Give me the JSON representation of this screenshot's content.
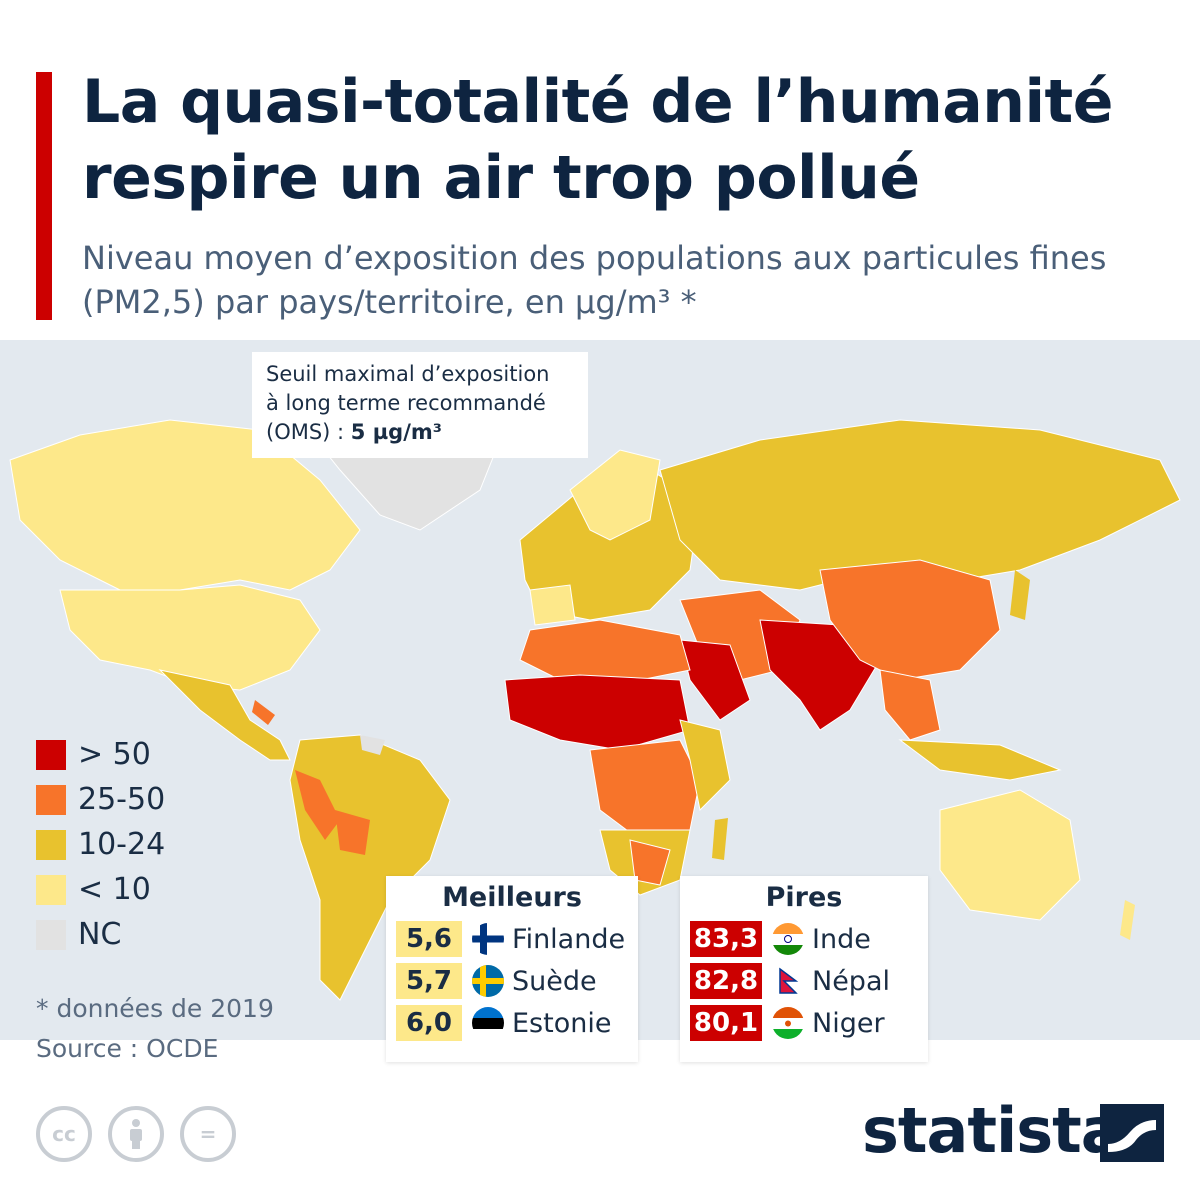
{
  "header": {
    "title": "La quasi-totalité de l’humanité respire un air trop pollué",
    "subtitle": "Niveau moyen d’exposition des populations aux particules fines (PM2,5) par pays/territoire, en µg/m³ *"
  },
  "annotation": {
    "line1": "Seuil maximal d’exposition",
    "line2": "à long terme recommandé",
    "line3_prefix": "(OMS) : ",
    "line3_value": "5 µg/m³"
  },
  "legend": {
    "items": [
      {
        "label": "> 50",
        "color": "#cc0000"
      },
      {
        "label": "25-50",
        "color": "#f7742a"
      },
      {
        "label": "10-24",
        "color": "#e8c22e"
      },
      {
        "label": "< 10",
        "color": "#fde88a"
      },
      {
        "label": "NC",
        "color": "#e2e2e2"
      }
    ]
  },
  "footer": {
    "note": "* données de 2019",
    "source": "Source : OCDE",
    "brand": "statista",
    "license_icons": [
      "cc-icon",
      "attribution-icon",
      "no-derivatives-icon"
    ]
  },
  "best": {
    "title": "Meilleurs",
    "rows": [
      {
        "value": "5,6",
        "country": "Finlande",
        "flag": "finland-flag-icon"
      },
      {
        "value": "5,7",
        "country": "Suède",
        "flag": "sweden-flag-icon"
      },
      {
        "value": "6,0",
        "country": "Estonie",
        "flag": "estonia-flag-icon"
      }
    ]
  },
  "worst": {
    "title": "Pires",
    "rows": [
      {
        "value": "83,3",
        "country": "Inde",
        "flag": "india-flag-icon"
      },
      {
        "value": "82,8",
        "country": "Népal",
        "flag": "nepal-flag-icon"
      },
      {
        "value": "80,1",
        "country": "Niger",
        "flag": "niger-flag-icon"
      }
    ]
  },
  "colors": {
    "accent": "#cc0000",
    "ocean": "#e3e9ef",
    "title": "#0e2440"
  }
}
